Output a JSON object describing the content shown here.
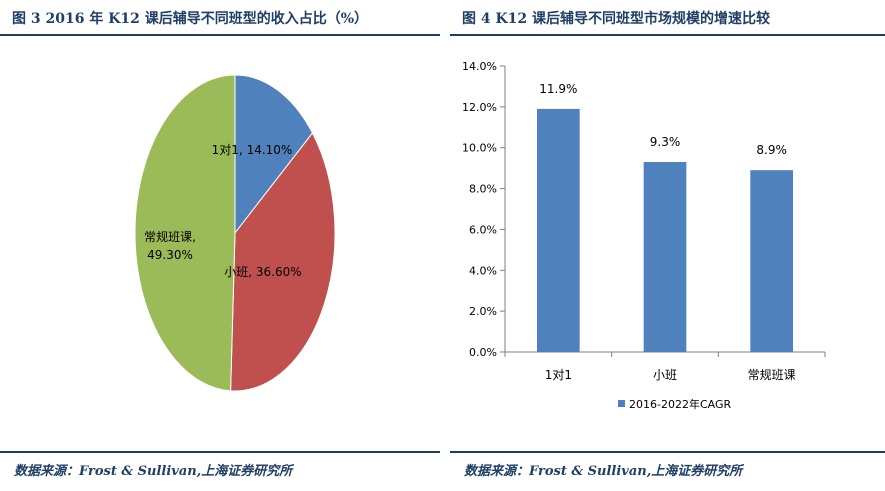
{
  "figures": [
    {
      "title": "图  3 2016 年 K12 课后辅导不同班型的收入占比（%）",
      "source": "数据来源：Frost & Sullivan,上海证券研究所"
    },
    {
      "title": "图  4 K12 课后辅导不同班型市场规模的增速比较",
      "source": "数据来源：Frost & Sullivan,上海证券研究所"
    }
  ],
  "chart_data": [
    {
      "type": "pie",
      "title": "图  3 2016 年 K12 课后辅导不同班型的收入占比（%）",
      "slices": [
        {
          "name": "1对1",
          "value": 14.1,
          "label": "1对1, 14.10%",
          "color": "#4f81bd"
        },
        {
          "name": "小班",
          "value": 36.6,
          "label": "小班, 36.60%",
          "color": "#c0504d"
        },
        {
          "name": "常规班课",
          "value": 49.3,
          "label_lines": [
            "常规班课,",
            "49.30%"
          ],
          "color": "#9bbb59"
        }
      ]
    },
    {
      "type": "bar",
      "title": "图  4 K12 课后辅导不同班型市场规模的增速比较",
      "categories": [
        "1对1",
        "小班",
        "常规班课"
      ],
      "series": [
        {
          "name": "2016-2022年CAGR",
          "values": [
            11.9,
            9.3,
            8.9
          ],
          "labels": [
            "11.9%",
            "9.3%",
            "8.9%"
          ],
          "color": "#4f81bd"
        }
      ],
      "ylim": [
        0,
        14
      ],
      "yticks": [
        "0.0%",
        "2.0%",
        "4.0%",
        "6.0%",
        "8.0%",
        "10.0%",
        "12.0%",
        "14.0%"
      ],
      "yticks_values": [
        0,
        2,
        4,
        6,
        8,
        10,
        12,
        14
      ],
      "legend_position": "bottom",
      "grid": false
    }
  ]
}
